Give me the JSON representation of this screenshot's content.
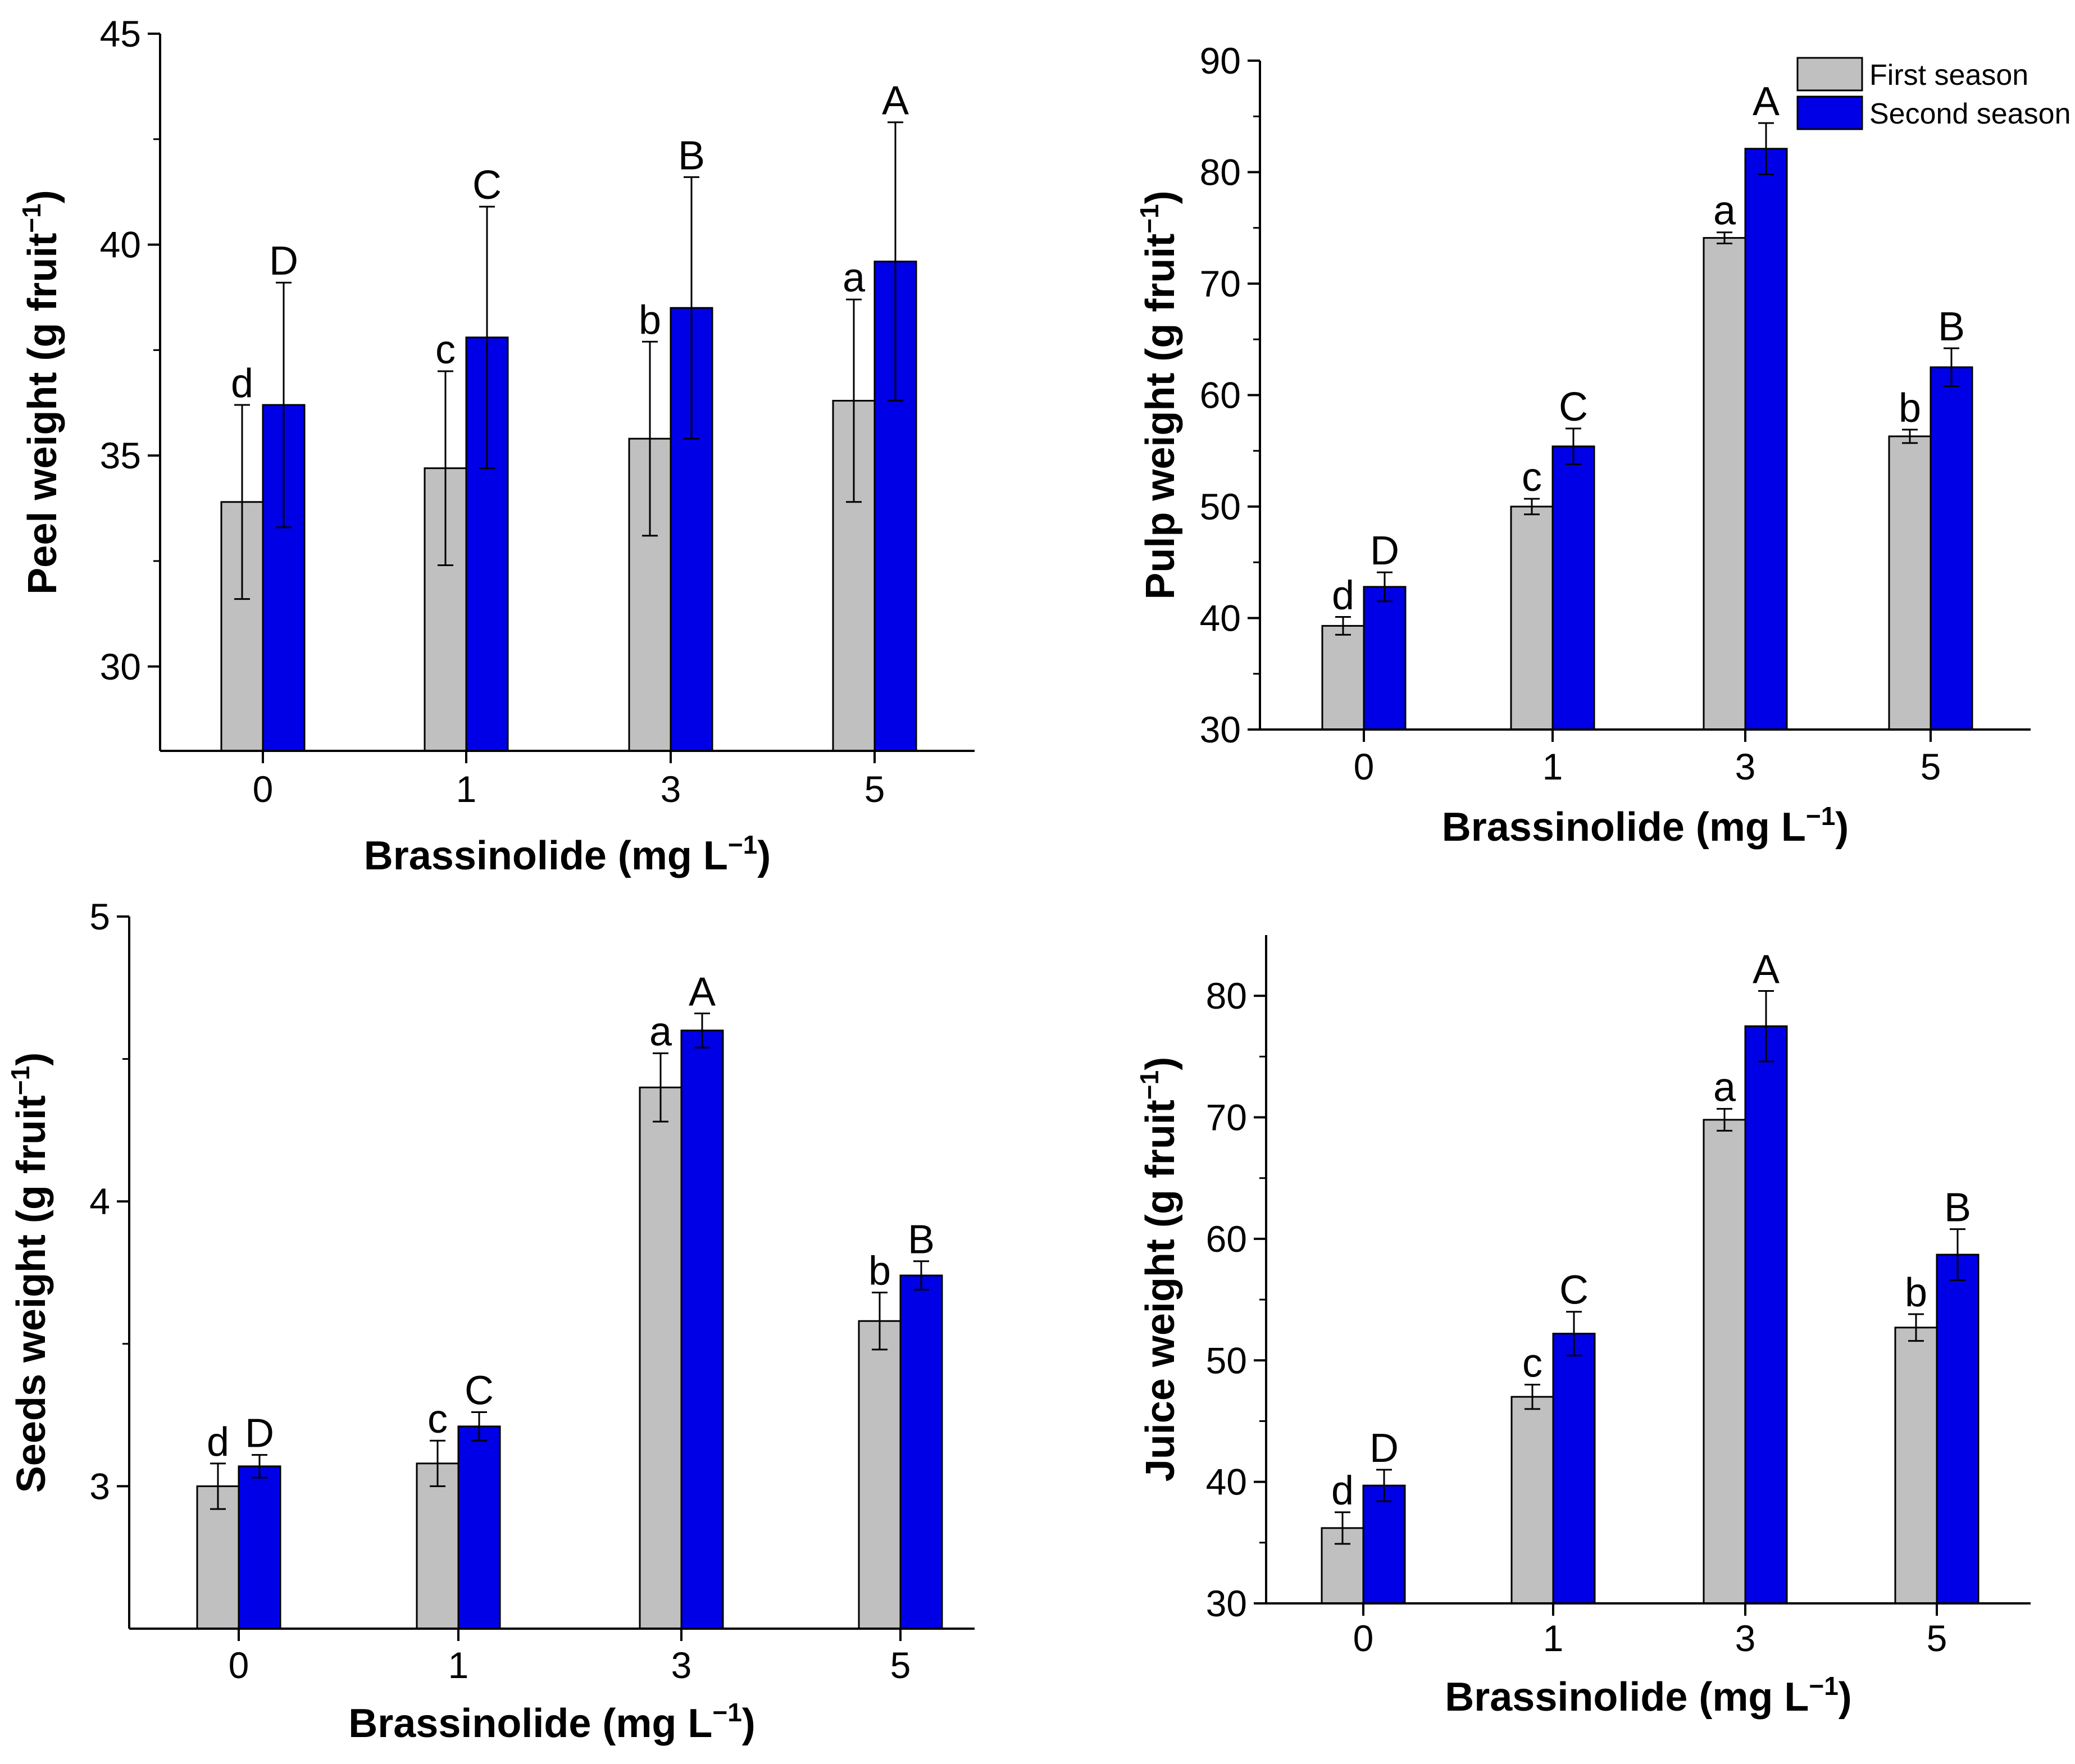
{
  "figure": {
    "legend": {
      "first_label": "First season",
      "second_label": "Second season"
    },
    "colors": {
      "first": "#c0c0c0",
      "second": "#0000e6",
      "axis": "#000000"
    }
  },
  "chart_data": [
    {
      "id": "peel",
      "type": "bar",
      "categories": [
        "0",
        "1",
        "3",
        "5"
      ],
      "series": [
        {
          "name": "First season",
          "values": [
            33.9,
            34.7,
            35.4,
            36.3
          ],
          "errors": [
            2.3,
            2.3,
            2.3,
            2.4
          ],
          "letters": [
            "d",
            "c",
            "b",
            "a"
          ]
        },
        {
          "name": "Second season",
          "values": [
            36.2,
            37.8,
            38.5,
            39.6
          ],
          "errors": [
            2.9,
            3.1,
            3.1,
            3.3
          ],
          "letters": [
            "D",
            "C",
            "B",
            "A"
          ]
        }
      ],
      "ylim": [
        28,
        45
      ],
      "yticks": [
        30,
        35,
        40,
        45
      ],
      "xlabel": {
        "main": "Brassinolide (mg L",
        "sup": "−1",
        "tail": ")"
      },
      "ylabel": {
        "main": "Peel  weight (g fruit",
        "sup": "−1",
        "tail": ")"
      },
      "legend": false
    },
    {
      "id": "pulp",
      "type": "bar",
      "categories": [
        "0",
        "1",
        "3",
        "5"
      ],
      "series": [
        {
          "name": "First season",
          "values": [
            39.3,
            50.0,
            74.1,
            56.3
          ],
          "errors": [
            0.8,
            0.7,
            0.5,
            0.6
          ],
          "letters": [
            "d",
            "c",
            "a",
            "b"
          ]
        },
        {
          "name": "Second season",
          "values": [
            42.8,
            55.4,
            82.1,
            62.5
          ],
          "errors": [
            1.3,
            1.6,
            2.3,
            1.7
          ],
          "letters": [
            "D",
            "C",
            "A",
            "B"
          ]
        }
      ],
      "ylim": [
        30,
        90
      ],
      "yticks": [
        30,
        40,
        50,
        60,
        70,
        80,
        90
      ],
      "xlabel": {
        "main": "Brassinolide (mg L",
        "sup": "−1",
        "tail": ")"
      },
      "ylabel": {
        "main": "Pulp  weight (g fruit",
        "sup": "−1",
        "tail": ")"
      },
      "legend": true
    },
    {
      "id": "seeds",
      "type": "bar",
      "categories": [
        "0",
        "1",
        "3",
        "5"
      ],
      "series": [
        {
          "name": "First season",
          "values": [
            3.0,
            3.08,
            4.4,
            3.58
          ],
          "errors": [
            0.08,
            0.08,
            0.12,
            0.1
          ],
          "letters": [
            "d",
            "c",
            "a",
            "b"
          ]
        },
        {
          "name": "Second season",
          "values": [
            3.07,
            3.21,
            4.6,
            3.74
          ],
          "errors": [
            0.04,
            0.05,
            0.06,
            0.05
          ],
          "letters": [
            "D",
            "C",
            "A",
            "B"
          ]
        }
      ],
      "ylim": [
        2.5,
        5
      ],
      "yticks": [
        3,
        4,
        5
      ],
      "xlabel": {
        "main": "Brassinolide (mg L",
        "sup": "−1",
        "tail": ")"
      },
      "ylabel": {
        "main": "Seeds weight (g fruit",
        "sup": "−1",
        "tail": ")"
      },
      "legend": false
    },
    {
      "id": "juice",
      "type": "bar",
      "categories": [
        "0",
        "1",
        "3",
        "5"
      ],
      "series": [
        {
          "name": "First season",
          "values": [
            36.2,
            47.0,
            69.8,
            52.7
          ],
          "errors": [
            1.3,
            1.0,
            0.9,
            1.1
          ],
          "letters": [
            "d",
            "c",
            "a",
            "b"
          ]
        },
        {
          "name": "Second season",
          "values": [
            39.7,
            52.2,
            77.5,
            58.7
          ],
          "errors": [
            1.3,
            1.8,
            2.9,
            2.1
          ],
          "letters": [
            "D",
            "C",
            "A",
            "B"
          ]
        }
      ],
      "ylim": [
        30,
        85
      ],
      "yticks": [
        30,
        40,
        50,
        60,
        70,
        80
      ],
      "xlabel": {
        "main": "Brassinolide (mg L",
        "sup": "−1",
        "tail": ")"
      },
      "ylabel": {
        "main": "Juice weight (g fruit",
        "sup": "−1",
        "tail": ")"
      },
      "legend": false
    }
  ]
}
